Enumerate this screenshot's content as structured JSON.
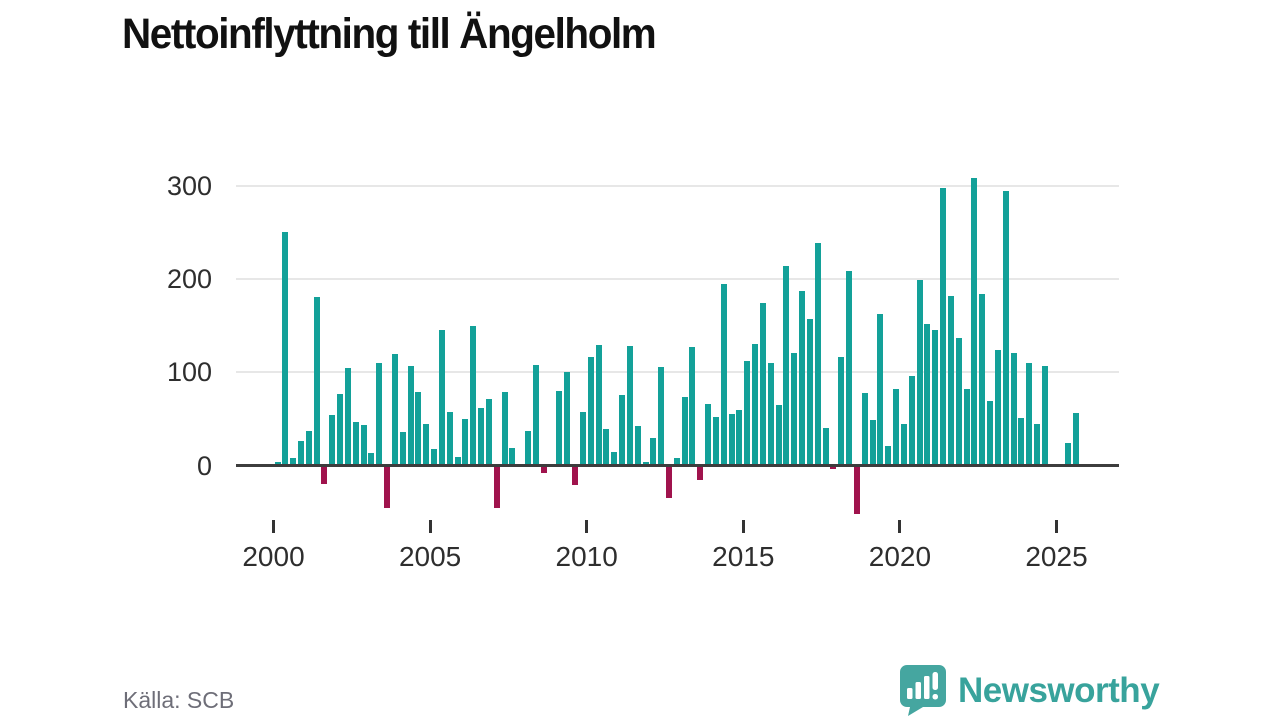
{
  "title": "Nettoinflyttning till Ängelholm",
  "source": "Källa: SCB",
  "logo": {
    "text": "Newsworthy",
    "icon": "newsworthy-speech-bubble-chart-icon"
  },
  "colors": {
    "positive_bar": "#13a199",
    "negative_bar": "#a0134d",
    "title_text": "#111111",
    "axis_text": "#2e2e2e",
    "gridline": "#e7e7e7",
    "axis_line": "#3d3d3d",
    "source_text": "#6e6e78",
    "logo_teal": "#38a39c"
  },
  "chart_data": {
    "type": "bar",
    "title": "Nettoinflyttning till Ängelholm",
    "xlabel": "",
    "ylabel": "",
    "legend": "none",
    "grid": true,
    "y_axis": {
      "ticks": [
        300,
        200,
        100,
        0
      ],
      "range": [
        -60,
        320
      ]
    },
    "x_axis": {
      "tick_years": [
        2000,
        2005,
        2010,
        2015,
        2020,
        2025
      ]
    },
    "categories": [
      "2000 Q1",
      "2000 Q2",
      "2000 Q3",
      "2000 Q4",
      "2001 Q1",
      "2001 Q2",
      "2001 Q3",
      "2001 Q4",
      "2002 Q1",
      "2002 Q2",
      "2002 Q3",
      "2002 Q4",
      "2003 Q1",
      "2003 Q2",
      "2003 Q3",
      "2003 Q4",
      "2004 Q1",
      "2004 Q2",
      "2004 Q3",
      "2004 Q4",
      "2005 Q1",
      "2005 Q2",
      "2005 Q3",
      "2005 Q4",
      "2006 Q1",
      "2006 Q2",
      "2006 Q3",
      "2006 Q4",
      "2007 Q1",
      "2007 Q2",
      "2007 Q3",
      "2007 Q4",
      "2008 Q1",
      "2008 Q2",
      "2008 Q3",
      "2008 Q4",
      "2009 Q1",
      "2009 Q2",
      "2009 Q3",
      "2009 Q4",
      "2010 Q1",
      "2010 Q2",
      "2010 Q3",
      "2010 Q4",
      "2011 Q1",
      "2011 Q2",
      "2011 Q3",
      "2011 Q4",
      "2012 Q1",
      "2012 Q2",
      "2012 Q3",
      "2012 Q4",
      "2013 Q1",
      "2013 Q2",
      "2013 Q3",
      "2013 Q4",
      "2014 Q1",
      "2014 Q2",
      "2014 Q3",
      "2014 Q4",
      "2015 Q1",
      "2015 Q2",
      "2015 Q3",
      "2015 Q4",
      "2016 Q1",
      "2016 Q2",
      "2016 Q3",
      "2016 Q4",
      "2017 Q1",
      "2017 Q2",
      "2017 Q3",
      "2017 Q4",
      "2018 Q1",
      "2018 Q2",
      "2018 Q3",
      "2018 Q4",
      "2019 Q1",
      "2019 Q2",
      "2019 Q3",
      "2019 Q4",
      "2020 Q1",
      "2020 Q2",
      "2020 Q3",
      "2020 Q4",
      "2021 Q1",
      "2021 Q2",
      "2021 Q3",
      "2021 Q4",
      "2022 Q1",
      "2022 Q2",
      "2022 Q3",
      "2022 Q4",
      "2023 Q1",
      "2023 Q2",
      "2023 Q3",
      "2023 Q4",
      "2024 Q1",
      "2024 Q2",
      "2024 Q3",
      "2024 Q4",
      "2025 Q1",
      "2025 Q2",
      "2025 Q3"
    ],
    "values": [
      4,
      250,
      8,
      26,
      37,
      181,
      -20,
      54,
      77,
      105,
      47,
      43,
      13,
      110,
      -46,
      120,
      36,
      107,
      79,
      45,
      18,
      145,
      57,
      9,
      50,
      150,
      62,
      71,
      -45,
      79,
      19,
      0,
      37,
      108,
      -8,
      0,
      80,
      100,
      -21,
      57,
      116,
      129,
      39,
      14,
      76,
      128,
      42,
      4,
      29,
      106,
      -35,
      8,
      73,
      127,
      -15,
      66,
      52,
      195,
      55,
      60,
      112,
      130,
      174,
      110,
      65,
      214,
      121,
      187,
      157,
      238,
      40,
      -4,
      116,
      208,
      -52,
      78,
      49,
      162,
      21,
      82,
      44,
      96,
      199,
      152,
      145,
      297,
      182,
      137,
      82,
      308,
      184,
      69,
      124,
      294,
      121,
      51,
      110,
      45,
      107,
      0,
      0,
      24,
      56
    ]
  }
}
